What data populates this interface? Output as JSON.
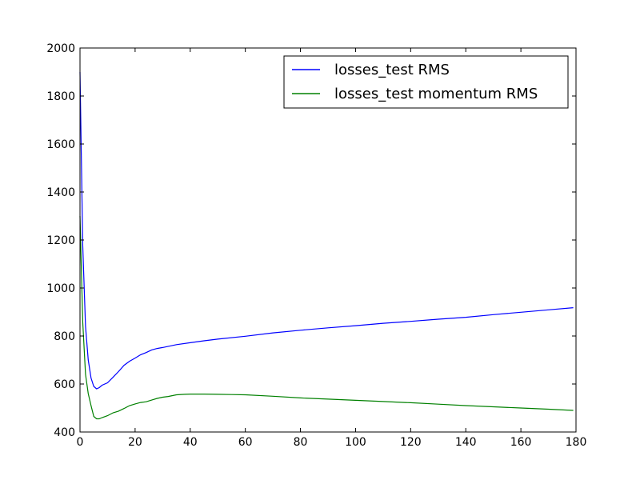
{
  "chart_data": {
    "type": "line",
    "title": "",
    "xlabel": "",
    "ylabel": "",
    "xlim": [
      0,
      180
    ],
    "ylim": [
      400,
      2000
    ],
    "xticks": [
      0,
      20,
      40,
      60,
      80,
      100,
      120,
      140,
      160,
      180
    ],
    "yticks": [
      400,
      600,
      800,
      1000,
      1200,
      1400,
      1600,
      1800,
      2000
    ],
    "grid": false,
    "legend_position": "top-right",
    "series": [
      {
        "name": "losses_test RMS",
        "color": "#0000ff",
        "x": [
          0,
          1,
          2,
          3,
          4,
          5,
          6,
          7,
          8,
          10,
          12,
          14,
          16,
          18,
          20,
          22,
          24,
          26,
          28,
          30,
          35,
          40,
          45,
          50,
          60,
          70,
          80,
          90,
          100,
          110,
          120,
          130,
          140,
          150,
          160,
          170,
          179
        ],
        "y": [
          1900,
          1180,
          840,
          700,
          625,
          590,
          580,
          585,
          595,
          605,
          628,
          652,
          678,
          695,
          708,
          722,
          731,
          742,
          748,
          752,
          764,
          772,
          780,
          787,
          799,
          813,
          824,
          834,
          843,
          853,
          861,
          870,
          878,
          889,
          899,
          909,
          918
        ]
      },
      {
        "name": "losses_test momentum RMS",
        "color": "#008000",
        "x": [
          0,
          1,
          2,
          3,
          4,
          5,
          6,
          7,
          8,
          10,
          12,
          14,
          16,
          18,
          20,
          22,
          24,
          26,
          28,
          30,
          32,
          35,
          38,
          40,
          45,
          50,
          55,
          60,
          70,
          80,
          90,
          100,
          110,
          120,
          130,
          140,
          150,
          160,
          170,
          179
        ],
        "y": [
          1300,
          860,
          640,
          560,
          510,
          465,
          455,
          455,
          460,
          468,
          480,
          487,
          498,
          510,
          517,
          523,
          526,
          533,
          540,
          545,
          548,
          555,
          557,
          558,
          558,
          557,
          556,
          555,
          549,
          542,
          537,
          532,
          527,
          522,
          516,
          510,
          505,
          500,
          495,
          490
        ]
      }
    ]
  }
}
